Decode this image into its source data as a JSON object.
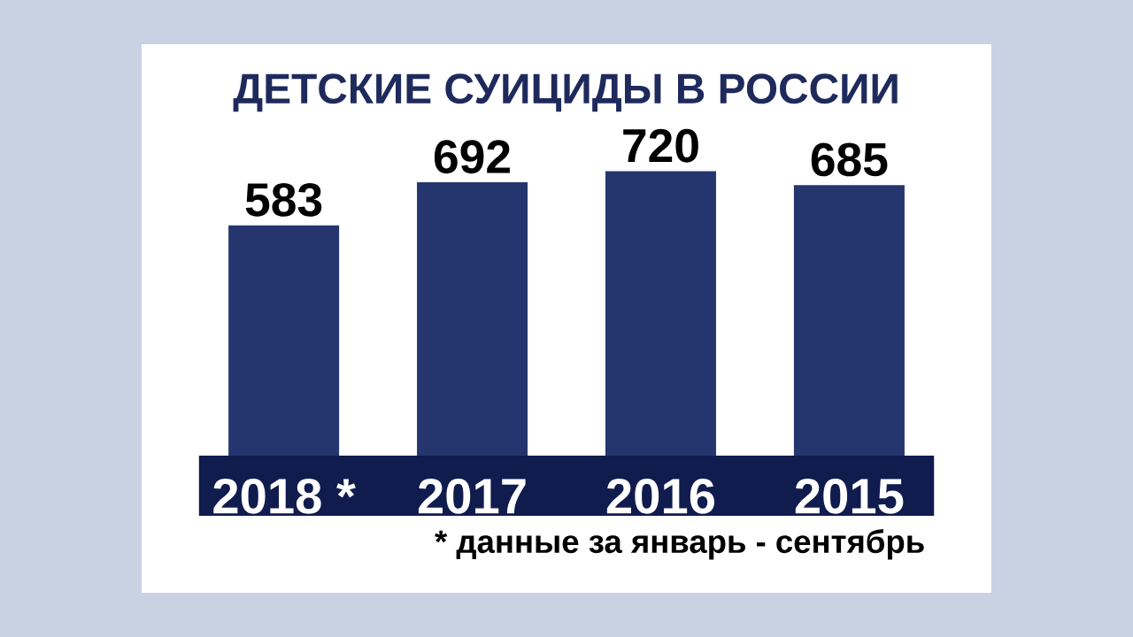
{
  "chart_data": {
    "type": "bar",
    "title": "ДЕТСКИЕ СУИЦИДЫ В РОССИИ",
    "categories": [
      "2018 *",
      "2017",
      "2016",
      "2015"
    ],
    "values": [
      583,
      692,
      720,
      685
    ],
    "color": "#25356e",
    "data_labels": true,
    "annotations": [
      "* данные за январь - сентябрь"
    ]
  }
}
